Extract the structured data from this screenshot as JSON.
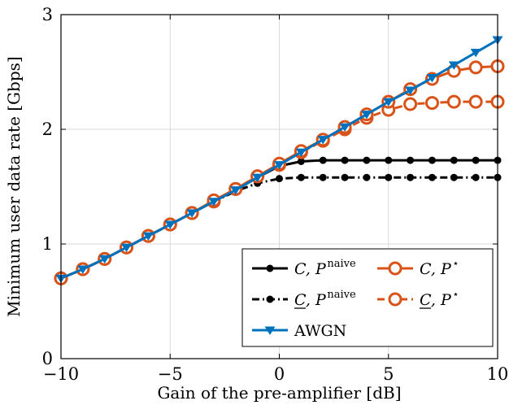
{
  "chart_data": {
    "type": "line",
    "xlabel": "Gain of the pre-amplifier [dB]",
    "ylabel": "Minimum user data rate [Gbps]",
    "xlim": [
      -10,
      10
    ],
    "ylim": [
      0,
      3
    ],
    "xticks": [
      -10,
      -5,
      0,
      5,
      10
    ],
    "xtick_labels": [
      "−10",
      "−5",
      "0",
      "5",
      "10"
    ],
    "yticks": [
      0,
      1,
      2,
      3
    ],
    "ytick_labels": [
      "0",
      "1",
      "2",
      "3"
    ],
    "grid": true,
    "legend_position": "bottom-right",
    "x": [
      -10,
      -9,
      -8,
      -7,
      -6,
      -5,
      -4,
      -3,
      -2,
      -1,
      0,
      1,
      2,
      3,
      4,
      5,
      6,
      7,
      8,
      9,
      10
    ],
    "series": [
      {
        "key": "c_naive",
        "legend_main": "C, P",
        "legend_sup": "naive",
        "underline": false,
        "color": "#000000",
        "linestyle": "solid",
        "marker": "dot",
        "values": [
          0.7,
          0.78,
          0.87,
          0.97,
          1.07,
          1.17,
          1.27,
          1.37,
          1.47,
          1.58,
          1.68,
          1.72,
          1.73,
          1.73,
          1.73,
          1.73,
          1.73,
          1.73,
          1.73,
          1.73,
          1.73
        ]
      },
      {
        "key": "c_under_naive",
        "legend_main": "C, P",
        "legend_sup": "naive",
        "underline": true,
        "color": "#000000",
        "linestyle": "dashdot",
        "marker": "dot",
        "values": [
          0.7,
          0.78,
          0.87,
          0.97,
          1.07,
          1.17,
          1.27,
          1.37,
          1.46,
          1.53,
          1.57,
          1.58,
          1.58,
          1.58,
          1.58,
          1.58,
          1.58,
          1.58,
          1.58,
          1.58,
          1.58
        ]
      },
      {
        "key": "c_star",
        "legend_main": "C, P",
        "legend_sup": "⋆",
        "underline": false,
        "color": "#D95319",
        "linestyle": "solid",
        "marker": "circle",
        "values": [
          0.7,
          0.78,
          0.87,
          0.97,
          1.07,
          1.17,
          1.27,
          1.38,
          1.48,
          1.59,
          1.7,
          1.81,
          1.91,
          2.02,
          2.13,
          2.24,
          2.35,
          2.44,
          2.51,
          2.54,
          2.55
        ]
      },
      {
        "key": "c_under_star",
        "legend_main": "C, P",
        "legend_sup": "⋆",
        "underline": true,
        "color": "#D95319",
        "linestyle": "dashed",
        "marker": "circle",
        "values": [
          0.7,
          0.78,
          0.87,
          0.97,
          1.07,
          1.17,
          1.27,
          1.37,
          1.48,
          1.59,
          1.69,
          1.8,
          1.9,
          2.0,
          2.1,
          2.17,
          2.22,
          2.23,
          2.24,
          2.24,
          2.24
        ]
      },
      {
        "key": "awgn",
        "legend_main": "AWGN",
        "legend_sup": "",
        "underline": false,
        "color": "#0072BD",
        "linestyle": "solid",
        "marker": "triangle-down",
        "values": [
          0.7,
          0.78,
          0.87,
          0.97,
          1.07,
          1.17,
          1.27,
          1.37,
          1.47,
          1.58,
          1.69,
          1.8,
          1.91,
          2.02,
          2.13,
          2.24,
          2.34,
          2.45,
          2.56,
          2.67,
          2.78
        ]
      }
    ]
  }
}
